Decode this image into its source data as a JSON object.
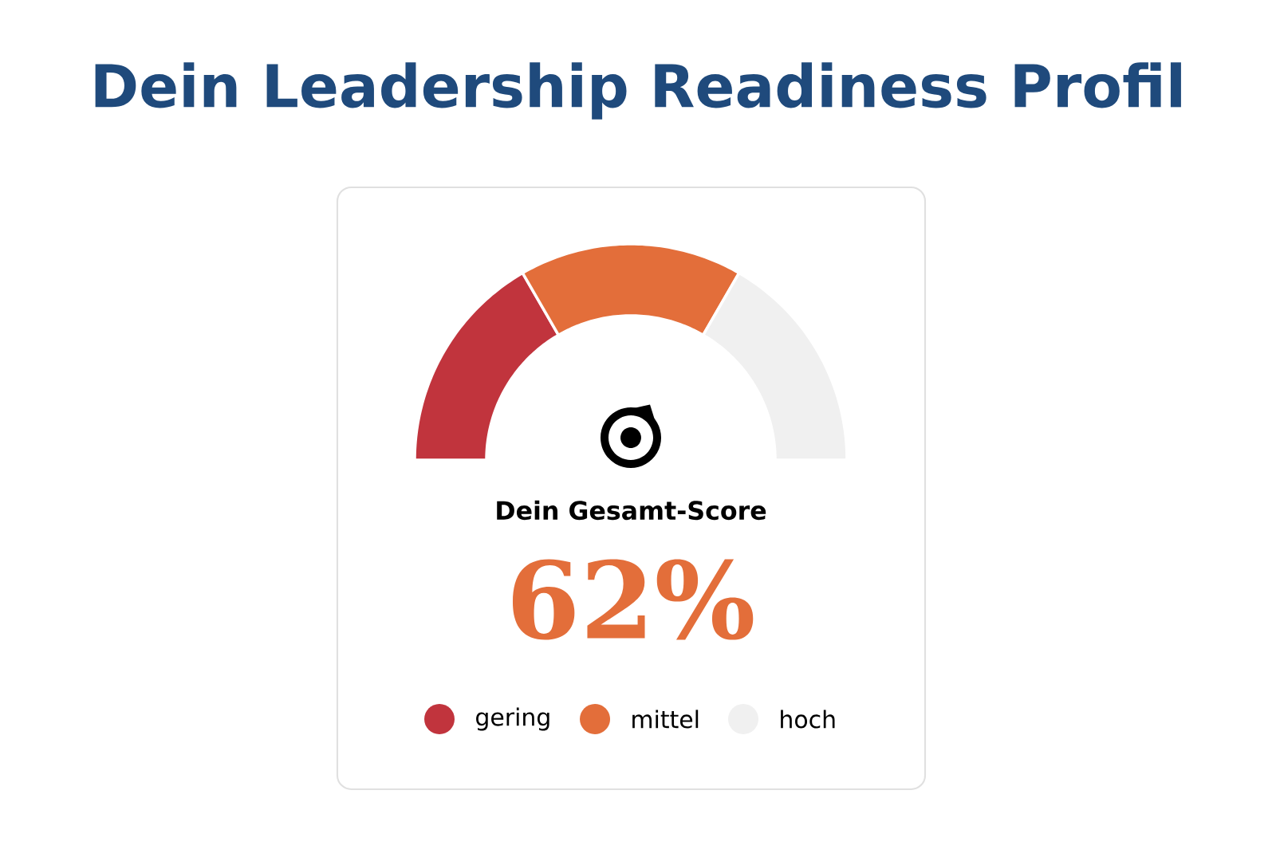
{
  "chart_data": {
    "type": "donut",
    "title": "Dein Leadership Readiness Profil",
    "categories": [
      "gering",
      "mittel",
      "hoch"
    ],
    "values": [
      33.3,
      33.4,
      33.3
    ],
    "colors": [
      "#c1343d",
      "#e36e3a",
      "#f0f0f0"
    ],
    "legend": "bottom",
    "annotations": [
      "Dein Gesamt-Score",
      "62%"
    ]
  }
}
